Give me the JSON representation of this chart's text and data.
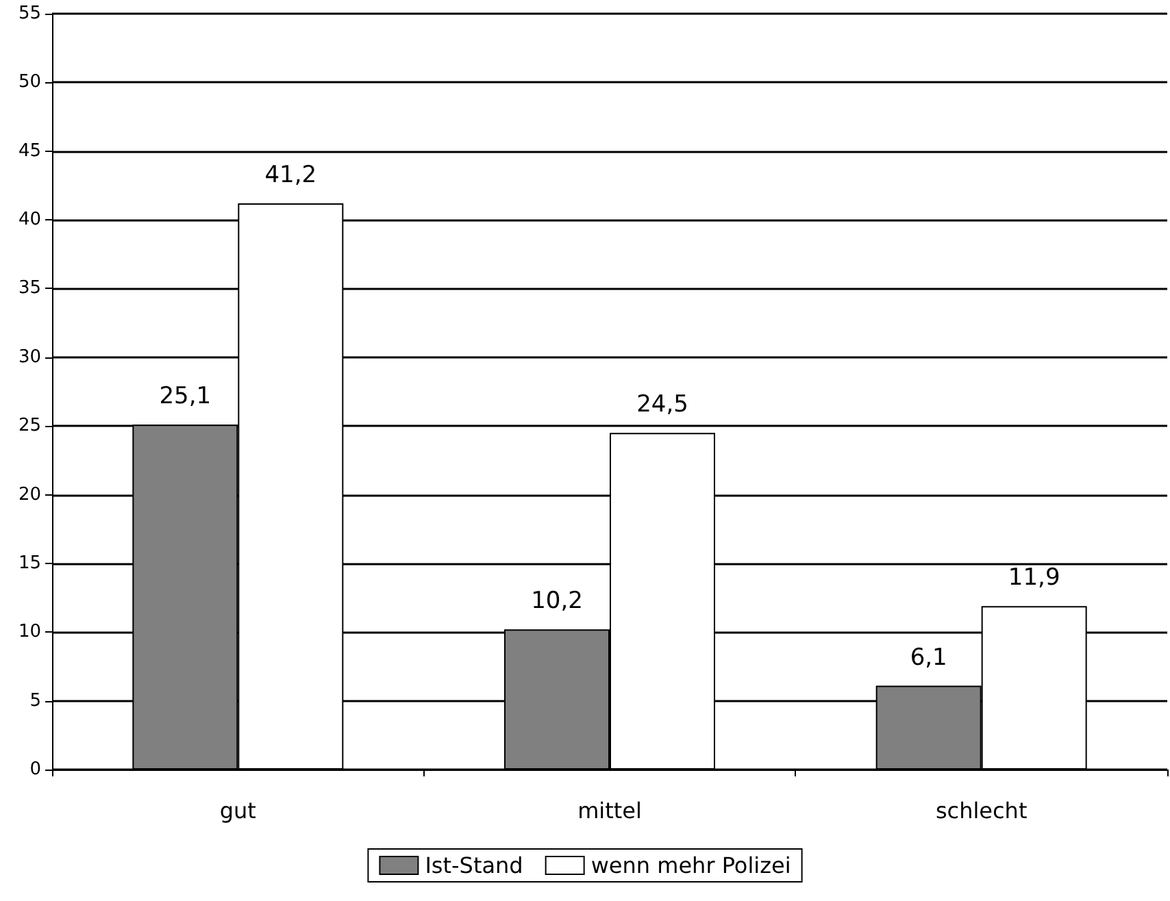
{
  "chart_data": {
    "type": "bar",
    "categories": [
      "gut",
      "mittel",
      "schlecht"
    ],
    "series": [
      {
        "name": "Ist-Stand",
        "color": "#808080",
        "values": [
          25.1,
          10.2,
          6.1
        ],
        "value_labels": [
          "25,1",
          "10,2",
          "6,1"
        ]
      },
      {
        "name": "wenn mehr Polizei",
        "color": "#ffffff",
        "values": [
          41.2,
          24.5,
          11.9
        ],
        "value_labels": [
          "41,2",
          "24,5",
          "11,9"
        ]
      }
    ],
    "ylim": [
      0,
      55
    ],
    "yticks": [
      0,
      5,
      10,
      15,
      20,
      25,
      30,
      35,
      40,
      45,
      50,
      55
    ],
    "grid": "y",
    "legend": "bottom"
  }
}
